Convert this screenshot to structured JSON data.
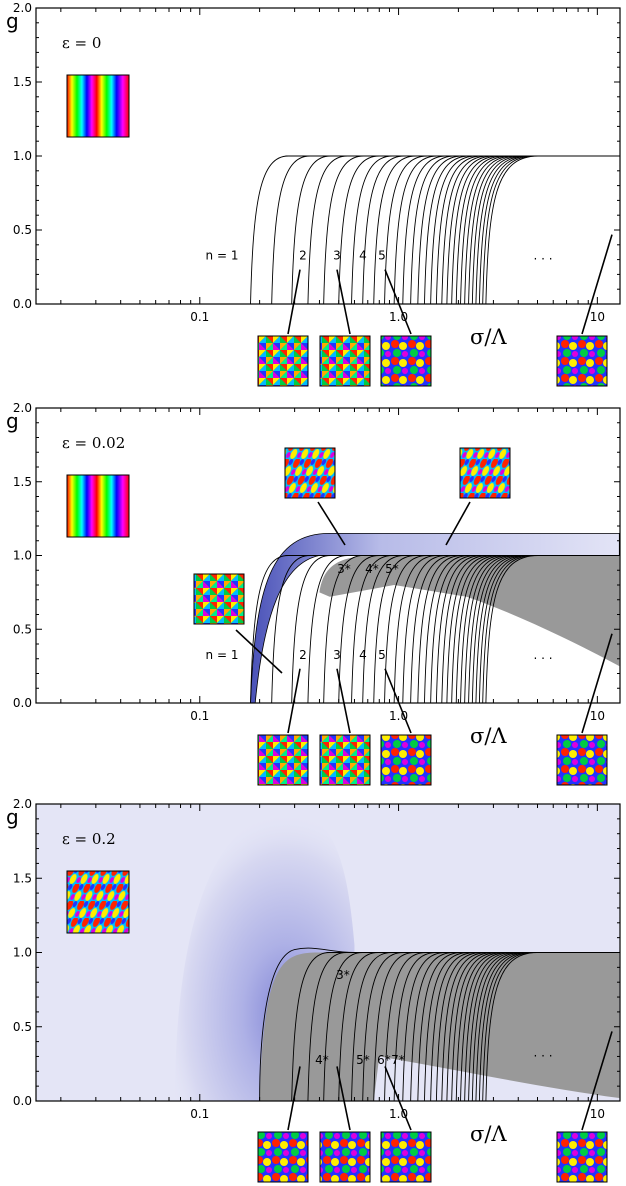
{
  "chart_data": [
    {
      "type": "line",
      "annotation": "ε = 0",
      "ylabel": "g",
      "xlabel": "σ/Λ",
      "xscale": "log",
      "xlim": [
        0.015,
        13
      ],
      "ylim": [
        0,
        2
      ],
      "y_ticks": [
        "0.0",
        "0.5",
        "1.0",
        "1.5",
        "2.0"
      ],
      "x_ticks": [
        "0.1",
        "1.0",
        "10"
      ],
      "branch_labels": [
        "n = 1",
        "2",
        "3",
        "4",
        "5",
        ". . ."
      ],
      "shaded_region": "none",
      "branch_starts": [
        0.18,
        0.23,
        0.29,
        0.35,
        0.42,
        0.5,
        0.58,
        0.66,
        0.75,
        0.85,
        0.95,
        1.05,
        1.15,
        1.25,
        1.35,
        1.45,
        1.55,
        1.65,
        1.75,
        1.85,
        1.95,
        2.05,
        2.15,
        2.25,
        2.35,
        2.45,
        2.55,
        2.65,
        2.75
      ],
      "plateau": 1.0
    },
    {
      "type": "line",
      "annotation": "ε = 0.02",
      "ylabel": "g",
      "xlabel": "σ/Λ",
      "xscale": "log",
      "xlim": [
        0.015,
        13
      ],
      "ylim": [
        0,
        2
      ],
      "y_ticks": [
        "0.0",
        "0.5",
        "1.0",
        "1.5",
        "2.0"
      ],
      "x_ticks": [
        "0.1",
        "1.0",
        "10"
      ],
      "branch_labels": [
        "n = 1",
        "2",
        "3",
        "4",
        "5",
        ". . ."
      ],
      "starred_labels": [
        "3",
        "4",
        "5"
      ],
      "shaded_region": "gray",
      "blue_band_max": 1.15,
      "branch_starts": [
        0.18,
        0.23,
        0.29,
        0.35,
        0.42,
        0.5,
        0.58,
        0.66,
        0.75,
        0.85,
        0.95,
        1.05,
        1.15,
        1.25,
        1.35,
        1.45,
        1.55,
        1.65,
        1.75,
        1.85,
        1.95,
        2.05,
        2.15,
        2.25,
        2.35,
        2.45,
        2.55,
        2.65,
        2.75
      ],
      "plateau": 1.0
    },
    {
      "type": "line",
      "annotation": "ε = 0.2",
      "ylabel": "g",
      "xlabel": "σ/Λ",
      "xscale": "log",
      "xlim": [
        0.015,
        13
      ],
      "ylim": [
        0,
        2
      ],
      "y_ticks": [
        "0.0",
        "0.5",
        "1.0",
        "1.5",
        "2.0"
      ],
      "x_ticks": [
        "0.1",
        "1.0",
        "10"
      ],
      "starred_labels": [
        "3",
        "4",
        "5",
        "6",
        "7"
      ],
      "more_label": ". . .",
      "shaded_region": "gray",
      "background": "lavender",
      "branch_starts": [
        0.29,
        0.35,
        0.42,
        0.5,
        0.58,
        0.66,
        0.75,
        0.85,
        0.95,
        1.05,
        1.15,
        1.25,
        1.35,
        1.45,
        1.55,
        1.65,
        1.75,
        1.85,
        1.95,
        2.05,
        2.15,
        2.25,
        2.35,
        2.45,
        2.55,
        2.65,
        2.75
      ],
      "plateau": 1.0
    }
  ]
}
